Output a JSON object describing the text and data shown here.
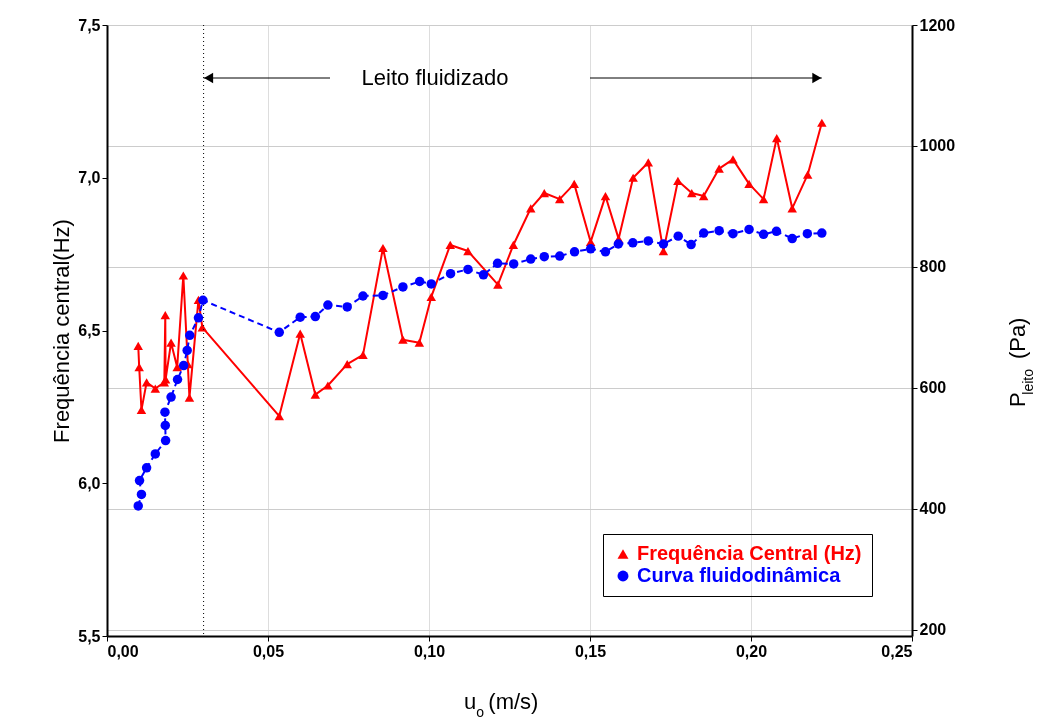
{
  "chart_data": {
    "type": "line",
    "xlabel": "u$_{o}$ (m/s)",
    "ylabel": "Frequência central(Hz)",
    "y2label": "P$_{leito}$ (Pa)",
    "xlim": [
      0,
      0.25
    ],
    "xticks": [
      {
        "value": 0,
        "label": "0,00"
      },
      {
        "value": 0.05,
        "label": "0,05"
      },
      {
        "value": 0.1,
        "label": "0,10"
      },
      {
        "value": 0.15,
        "label": "0,15"
      },
      {
        "value": 0.2,
        "label": "0,20"
      },
      {
        "value": 0.25,
        "label": "0,25"
      }
    ],
    "ylim": [
      5.5,
      7.5
    ],
    "yticks": [
      {
        "value": 5.5,
        "label": "5,5"
      },
      {
        "value": 6.0,
        "label": "6,0"
      },
      {
        "value": 6.5,
        "label": "6,5"
      },
      {
        "value": 7.0,
        "label": "7,0"
      },
      {
        "value": 7.5,
        "label": "7,5"
      }
    ],
    "y2lim": [
      190,
      1200
    ],
    "y2ticks": [
      200,
      400,
      600,
      800,
      1000,
      1200
    ],
    "grid": true,
    "legend": "bottom right",
    "annotations": [
      "Leito fluidizado"
    ],
    "ref_lines": [
      {
        "axis": "x",
        "value": 0.03,
        "line_style": "dotted",
        "color": "#000000"
      }
    ],
    "series": [
      {
        "name": "Frequência Central (Hz)",
        "color": "#ff0000",
        "marker": "triangle",
        "line_style": "solid",
        "axis": "y",
        "x": [
          0.0097,
          0.01,
          0.0107,
          0.0123,
          0.015,
          0.0178,
          0.0181,
          0.0182,
          0.0199,
          0.0218,
          0.0237,
          0.0251,
          0.0256,
          0.0284,
          0.0296,
          0.0535,
          0.06,
          0.0647,
          0.0686,
          0.0746,
          0.0795,
          0.0857,
          0.0919,
          0.097,
          0.1007,
          0.1066,
          0.1121,
          0.1214,
          0.1262,
          0.1316,
          0.1358,
          0.1406,
          0.1451,
          0.1502,
          0.1548,
          0.1589,
          0.1634,
          0.1681,
          0.1728,
          0.1773,
          0.1816,
          0.1853,
          0.1901,
          0.1944,
          0.1994,
          0.2039,
          0.208,
          0.2128,
          0.2176,
          0.222
        ],
        "values": [
          6.45,
          6.38,
          6.24,
          6.33,
          6.31,
          6.33,
          6.55,
          6.34,
          6.46,
          6.38,
          6.68,
          6.39,
          6.28,
          6.6,
          6.51,
          6.22,
          6.49,
          6.29,
          6.32,
          6.39,
          6.42,
          6.77,
          6.47,
          6.46,
          6.61,
          6.78,
          6.76,
          6.65,
          6.78,
          6.9,
          6.95,
          6.93,
          6.98,
          6.79,
          6.94,
          6.8,
          7.0,
          7.05,
          6.76,
          6.99,
          6.95,
          6.94,
          7.03,
          7.06,
          6.98,
          6.93,
          7.13,
          6.9,
          7.01,
          7.18
        ]
      },
      {
        "name": "Curva fluidodinâmica",
        "color": "#0000ff",
        "marker": "circle",
        "line_style": "dashed",
        "axis": "y2",
        "x": [
          0.0097,
          0.0107,
          0.0101,
          0.0123,
          0.015,
          0.0182,
          0.0181,
          0.018,
          0.0199,
          0.0219,
          0.0238,
          0.0249,
          0.0257,
          0.0284,
          0.0298,
          0.0535,
          0.06,
          0.0647,
          0.0686,
          0.0746,
          0.0795,
          0.0857,
          0.0919,
          0.0971,
          0.1007,
          0.1067,
          0.1121,
          0.1169,
          0.1213,
          0.1263,
          0.1316,
          0.1358,
          0.1406,
          0.1452,
          0.1502,
          0.1548,
          0.1588,
          0.1633,
          0.1681,
          0.1728,
          0.1774,
          0.1814,
          0.1853,
          0.1901,
          0.1944,
          0.1994,
          0.2039,
          0.2079,
          0.2128,
          0.2175,
          0.222
        ],
        "values": [
          405,
          424,
          447,
          468,
          491,
          513,
          538,
          560,
          585,
          614,
          637,
          662,
          687,
          716,
          745,
          692,
          717,
          718,
          737,
          734,
          752,
          753,
          767,
          776,
          772,
          789,
          796,
          787,
          806,
          805,
          813,
          817,
          818,
          825,
          830,
          825,
          838,
          840,
          843,
          838,
          851,
          837,
          856,
          860,
          855,
          862,
          854,
          859,
          847,
          855,
          856
        ]
      }
    ]
  }
}
